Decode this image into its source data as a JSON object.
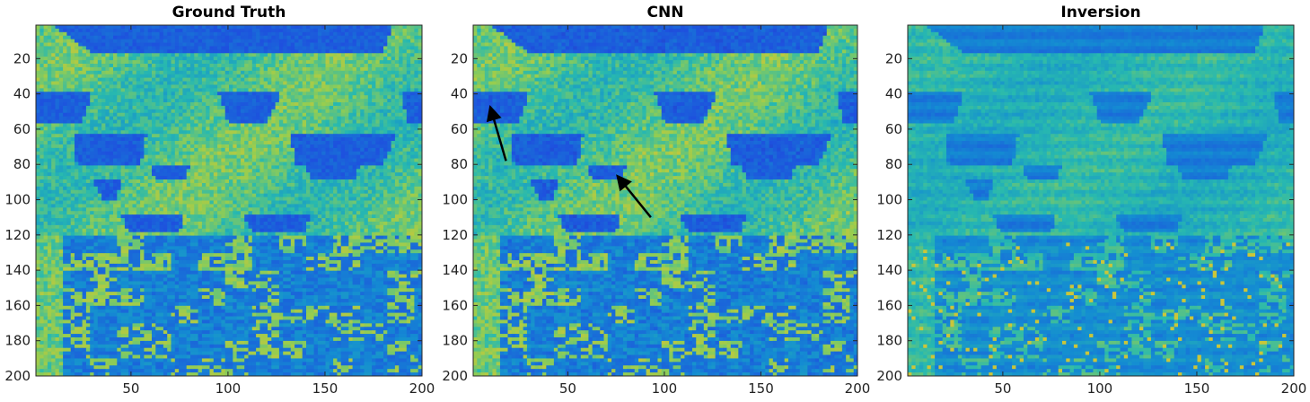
{
  "chart_data": [
    {
      "type": "heatmap",
      "title": "Ground Truth",
      "xlabel": "",
      "ylabel": "",
      "xlim": [
        1,
        200
      ],
      "ylim": [
        1,
        200
      ],
      "y_reversed": true,
      "xticks": [
        50,
        100,
        150,
        200
      ],
      "yticks": [
        20,
        40,
        60,
        80,
        100,
        120,
        140,
        160,
        180,
        200
      ],
      "variant": "truth"
    },
    {
      "type": "heatmap",
      "title": "CNN",
      "xlabel": "",
      "ylabel": "",
      "xlim": [
        1,
        200
      ],
      "ylim": [
        1,
        200
      ],
      "y_reversed": true,
      "xticks": [
        50,
        100,
        150,
        200
      ],
      "yticks": [
        20,
        40,
        60,
        80,
        100,
        120,
        140,
        160,
        180,
        200
      ],
      "variant": "cnn",
      "annotations": [
        {
          "type": "arrow",
          "from": [
            18,
            78
          ],
          "to": [
            10,
            48
          ]
        },
        {
          "type": "arrow",
          "from": [
            93,
            110
          ],
          "to": [
            76,
            87
          ]
        }
      ]
    },
    {
      "type": "heatmap",
      "title": "Inversion",
      "xlabel": "",
      "ylabel": "",
      "xlim": [
        1,
        200
      ],
      "ylim": [
        1,
        200
      ],
      "y_reversed": true,
      "xticks": [
        50,
        100,
        150,
        200
      ],
      "yticks": [
        20,
        40,
        60,
        80,
        100,
        120,
        140,
        160,
        180,
        200
      ],
      "variant": "inversion"
    }
  ],
  "colors": {
    "low": "#3b4fe0",
    "mid": "#39b3c8",
    "high": "#c8d83a",
    "frame": "#262626"
  }
}
